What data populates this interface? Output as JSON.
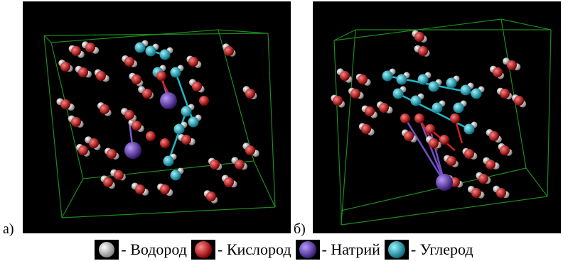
{
  "panels": [
    {
      "label": "а)",
      "name": "panel-a"
    },
    {
      "label": "б)",
      "name": "panel-b"
    }
  ],
  "legend": [
    {
      "text": "- Водород",
      "color": "#e8e8e8",
      "icon": "hydrogen-sphere-icon"
    },
    {
      "text": "- Кислород",
      "color": "#e01818",
      "icon": "oxygen-sphere-icon"
    },
    {
      "text": "- Натрий",
      "color": "#6a3fb8",
      "icon": "sodium-sphere-icon"
    },
    {
      "text": "- Углерод",
      "color": "#1fb8c8",
      "icon": "carbon-sphere-icon"
    }
  ],
  "colors": {
    "background": "#000000",
    "box_edges": "#1f8a1f"
  }
}
